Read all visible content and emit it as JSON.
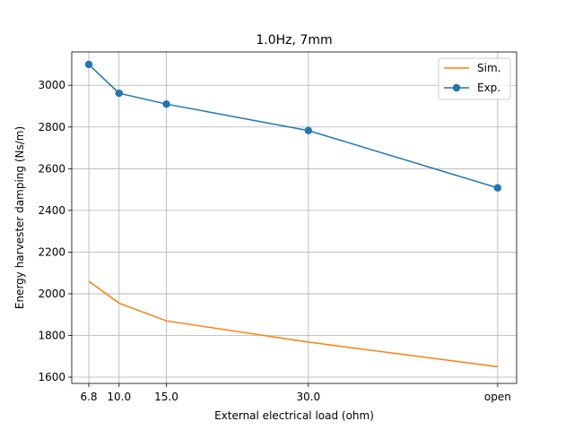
{
  "chart_data": {
    "type": "line",
    "title": "1.0Hz, 7mm",
    "xlabel": "External electrical load (ohm)",
    "ylabel": "Energy harvester damping (Ns/m)",
    "x_categories": [
      "6.8",
      "10.0",
      "15.0",
      "30.0",
      "open"
    ],
    "x_positions": [
      6.8,
      10.0,
      15.0,
      30.0,
      50.0
    ],
    "xlim": [
      5.0,
      52.0
    ],
    "ylim": [
      1570,
      3160
    ],
    "yticks": [
      1600,
      1800,
      2000,
      2200,
      2400,
      2600,
      2800,
      3000
    ],
    "grid": true,
    "legend_position": "top-right",
    "series": [
      {
        "name": "Sim.",
        "color": "#ff7f0e",
        "marker": "none",
        "values": [
          2060,
          1955,
          1870,
          1768,
          1650
        ]
      },
      {
        "name": "Exp.",
        "color": "#1f77b4",
        "marker": "circle",
        "values": [
          3100,
          2962,
          2910,
          2783,
          2508
        ]
      }
    ]
  }
}
